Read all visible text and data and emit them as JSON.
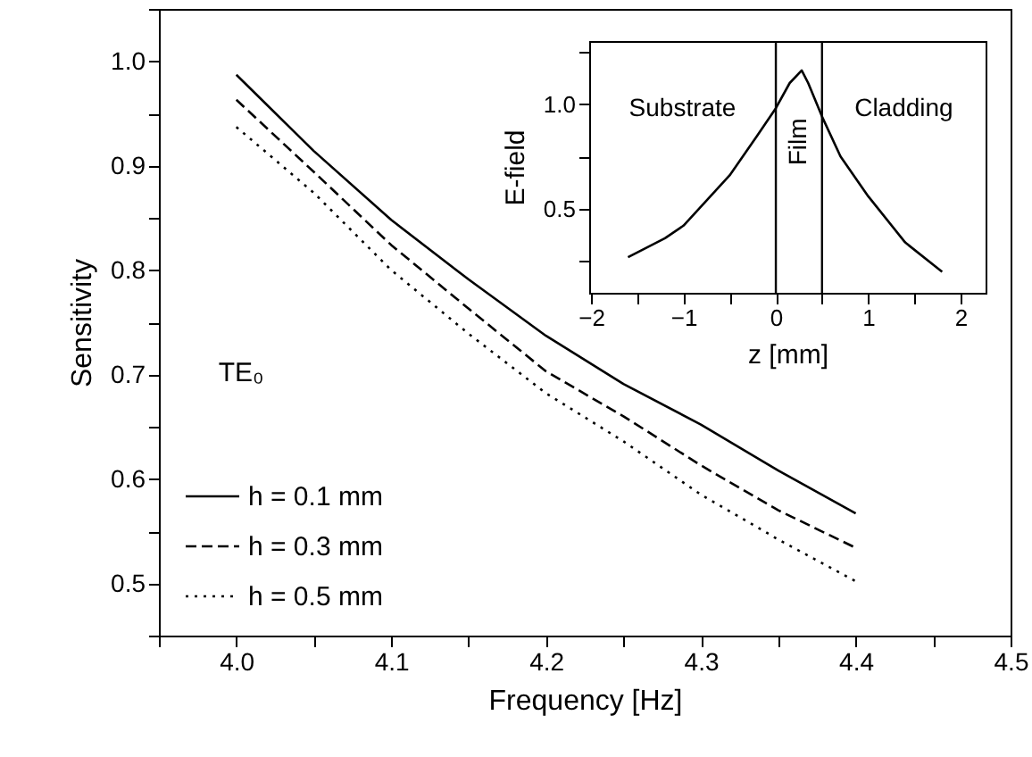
{
  "chart_data": [
    {
      "type": "line",
      "xlabel": "Frequency [Hz]",
      "ylabel": "Sensitivity",
      "x": [
        4.0,
        4.05,
        4.1,
        4.15,
        4.2,
        4.25,
        4.3,
        4.35,
        4.4
      ],
      "series": [
        {
          "name": "h = 0.1 mm",
          "color": "#000000",
          "line_style": "solid",
          "values": [
            0.987,
            0.914,
            0.848,
            0.791,
            0.737,
            0.691,
            0.652,
            0.608,
            0.567
          ]
        },
        {
          "name": "h = 0.3 mm",
          "color": "#000000",
          "line_style": "dashed",
          "values": [
            0.963,
            0.894,
            0.824,
            0.763,
            0.703,
            0.66,
            0.613,
            0.57,
            0.534
          ]
        },
        {
          "name": "h = 0.5 mm",
          "color": "#000000",
          "line_style": "dotted",
          "values": [
            0.937,
            0.874,
            0.8,
            0.739,
            0.682,
            0.636,
            0.585,
            0.542,
            0.502
          ]
        }
      ],
      "xlim": [
        3.95,
        4.5
      ],
      "xticks": [
        {
          "value": 3.95,
          "label": null
        },
        {
          "value": 4,
          "label": "4.0"
        },
        {
          "value": 4.05,
          "label": null
        },
        4.1,
        {
          "value": 4.15,
          "label": null
        },
        4.2,
        {
          "value": 4.25,
          "label": null
        },
        4.3,
        {
          "value": 4.35,
          "label": null
        },
        4.4,
        {
          "value": 4.45,
          "label": null
        },
        4.5
      ],
      "ylim": [
        0.45,
        1.05
      ],
      "yticks": [
        {
          "value": 0.45,
          "label": null
        },
        0.5,
        {
          "value": 0.55,
          "label": null
        },
        0.6,
        {
          "value": 0.65,
          "label": null
        },
        0.7,
        {
          "value": 0.75,
          "label": null
        },
        0.8,
        {
          "value": 0.85,
          "label": null
        },
        0.9,
        {
          "value": 0.95,
          "label": null
        },
        {
          "value": 1,
          "label": "1.0"
        },
        {
          "value": 1.05,
          "label": null
        }
      ],
      "legend": "bottom left",
      "marker": "none",
      "grid": false,
      "annotations": [
        "TE₀"
      ]
    },
    {
      "type": "line",
      "xlabel": "z [mm]",
      "ylabel": "E-field",
      "x": [
        -1.6,
        -1.2,
        -1.0,
        -0.5,
        -0.2,
        0,
        0.15,
        0.28,
        0.35,
        0.5,
        0.7,
        1.0,
        1.4,
        1.8
      ],
      "series": [
        {
          "color": "#000000",
          "line_style": "solid",
          "values": [
            0.27,
            0.36,
            0.42,
            0.66,
            0.85,
            0.98,
            1.1,
            1.16,
            1.1,
            0.94,
            0.75,
            0.56,
            0.34,
            0.2
          ]
        }
      ],
      "xlim": [
        -2.02,
        2.27
      ],
      "xticks": [
        {
          "value": -2,
          "label": "−2"
        },
        {
          "value": -1.5,
          "label": null
        },
        {
          "value": -1,
          "label": "−1"
        },
        {
          "value": -0.5,
          "label": null
        },
        0,
        {
          "value": 0.5,
          "label": null
        },
        1,
        {
          "value": 1.5,
          "label": null
        },
        2
      ],
      "ylim": [
        0.1,
        1.3
      ],
      "yticks": [
        {
          "value": 0.25,
          "label": null
        },
        0.5,
        {
          "value": 0.75,
          "label": null
        },
        {
          "value": 1,
          "label": "1.0"
        },
        {
          "value": 1.25,
          "label": null
        }
      ],
      "ref_lines": [
        {
          "axis": "x",
          "value": 0,
          "color": "#000000"
        },
        {
          "axis": "x",
          "value": 0.5,
          "color": "#000000"
        }
      ],
      "marker": "none",
      "grid": false,
      "annotations": [
        "Substrate",
        "Film",
        "Cladding"
      ]
    }
  ]
}
